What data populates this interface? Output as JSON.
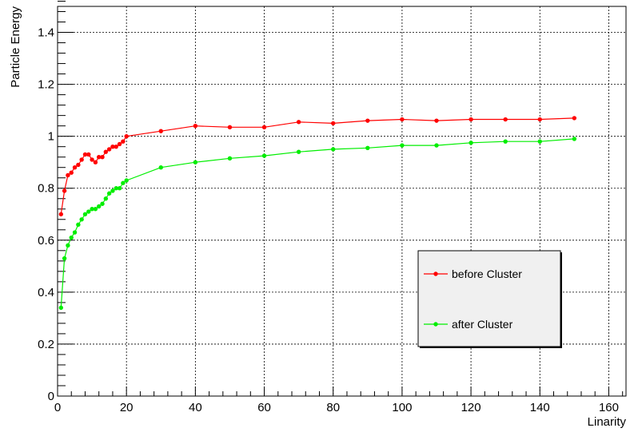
{
  "chart_data": {
    "type": "line",
    "xlabel": "Linarity",
    "ylabel": "Particle Energy",
    "xlim": [
      0,
      165
    ],
    "ylim": [
      0,
      1.5
    ],
    "xticks": [
      0,
      20,
      40,
      60,
      80,
      100,
      120,
      140,
      160
    ],
    "yticks": [
      0,
      0.2,
      0.4,
      0.6,
      0.8,
      1,
      1.2,
      1.4
    ],
    "grid": true,
    "legend_position": "bottom-right",
    "series": [
      {
        "name": "before Cluster",
        "color": "#ff0000",
        "x": [
          1,
          2,
          3,
          4,
          5,
          6,
          7,
          8,
          9,
          10,
          11,
          12,
          13,
          14,
          15,
          16,
          17,
          18,
          19,
          20,
          30,
          40,
          50,
          60,
          70,
          80,
          90,
          100,
          110,
          120,
          130,
          140,
          150
        ],
        "y": [
          0.7,
          0.79,
          0.85,
          0.86,
          0.88,
          0.89,
          0.91,
          0.93,
          0.93,
          0.91,
          0.9,
          0.92,
          0.92,
          0.94,
          0.95,
          0.96,
          0.96,
          0.97,
          0.98,
          1.0,
          1.02,
          1.04,
          1.035,
          1.035,
          1.055,
          1.05,
          1.06,
          1.065,
          1.06,
          1.065,
          1.065,
          1.065,
          1.07
        ]
      },
      {
        "name": "after Cluster",
        "color": "#00ee00",
        "x": [
          1,
          2,
          3,
          4,
          5,
          6,
          7,
          8,
          9,
          10,
          11,
          12,
          13,
          14,
          15,
          16,
          17,
          18,
          19,
          20,
          30,
          40,
          50,
          60,
          70,
          80,
          90,
          100,
          110,
          120,
          130,
          140,
          150
        ],
        "y": [
          0.34,
          0.53,
          0.58,
          0.61,
          0.63,
          0.66,
          0.68,
          0.7,
          0.71,
          0.72,
          0.72,
          0.73,
          0.74,
          0.76,
          0.78,
          0.79,
          0.8,
          0.8,
          0.82,
          0.83,
          0.88,
          0.9,
          0.915,
          0.925,
          0.94,
          0.95,
          0.955,
          0.965,
          0.965,
          0.975,
          0.98,
          0.98,
          0.99
        ]
      }
    ]
  }
}
